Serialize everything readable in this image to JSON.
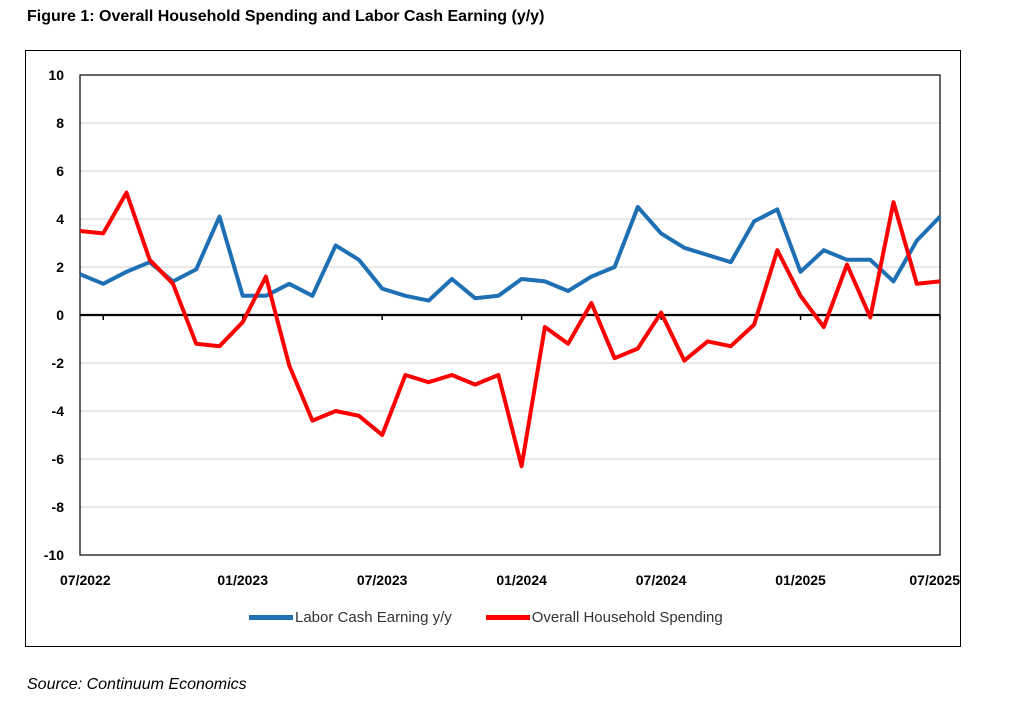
{
  "figure": {
    "title": "Figure 1: Overall Household Spending and Labor Cash Earning (y/y)",
    "source": "Source: Continuum Economics"
  },
  "chart_data": {
    "type": "line",
    "ylim": [
      -10,
      10
    ],
    "yticks": [
      10,
      8,
      6,
      4,
      2,
      0,
      -2,
      -4,
      -6,
      -8,
      -10
    ],
    "x_start": "07/2022",
    "x_end": "07/2025",
    "xtick_labels": [
      "07/2022",
      "01/2023",
      "07/2023",
      "01/2024",
      "07/2024",
      "01/2025",
      "07/2025"
    ],
    "x": [
      "2022-06",
      "2022-07",
      "2022-08",
      "2022-09",
      "2022-10",
      "2022-11",
      "2022-12",
      "2023-01",
      "2023-02",
      "2023-03",
      "2023-04",
      "2023-05",
      "2023-06",
      "2023-07",
      "2023-08",
      "2023-09",
      "2023-10",
      "2023-11",
      "2023-12",
      "2024-01",
      "2024-02",
      "2024-03",
      "2024-04",
      "2024-05",
      "2024-06",
      "2024-07",
      "2024-08",
      "2024-09",
      "2024-10",
      "2024-11",
      "2024-12",
      "2025-01",
      "2025-02",
      "2025-03",
      "2025-04",
      "2025-05",
      "2025-06",
      "2025-07"
    ],
    "grid": true,
    "legend_position": "bottom",
    "series": [
      {
        "name": "Labor Cash Earning y/y",
        "color": "#1f6fb4",
        "values": [
          1.7,
          1.3,
          1.8,
          2.2,
          1.4,
          1.9,
          4.1,
          0.8,
          0.8,
          1.3,
          0.8,
          2.9,
          2.3,
          1.1,
          0.8,
          0.6,
          1.5,
          0.7,
          0.8,
          1.5,
          1.4,
          1.0,
          1.6,
          2.0,
          4.5,
          3.4,
          2.8,
          2.5,
          2.2,
          3.9,
          4.4,
          1.8,
          2.7,
          2.3,
          2.3,
          1.4,
          3.1,
          4.1
        ]
      },
      {
        "name": "Overall Household Spending",
        "color": "#ff0000",
        "values": [
          3.5,
          3.4,
          5.1,
          2.3,
          1.3,
          -1.2,
          -1.3,
          -0.3,
          1.6,
          -2.1,
          -4.4,
          -4.0,
          -4.2,
          -5.0,
          -2.5,
          -2.8,
          -2.5,
          -2.9,
          -2.5,
          -6.3,
          -0.5,
          -1.2,
          0.5,
          -1.8,
          -1.4,
          0.1,
          -1.9,
          -1.1,
          -1.3,
          -0.4,
          2.7,
          0.8,
          -0.5,
          2.1,
          -0.1,
          4.7,
          1.3,
          1.4
        ]
      }
    ]
  }
}
